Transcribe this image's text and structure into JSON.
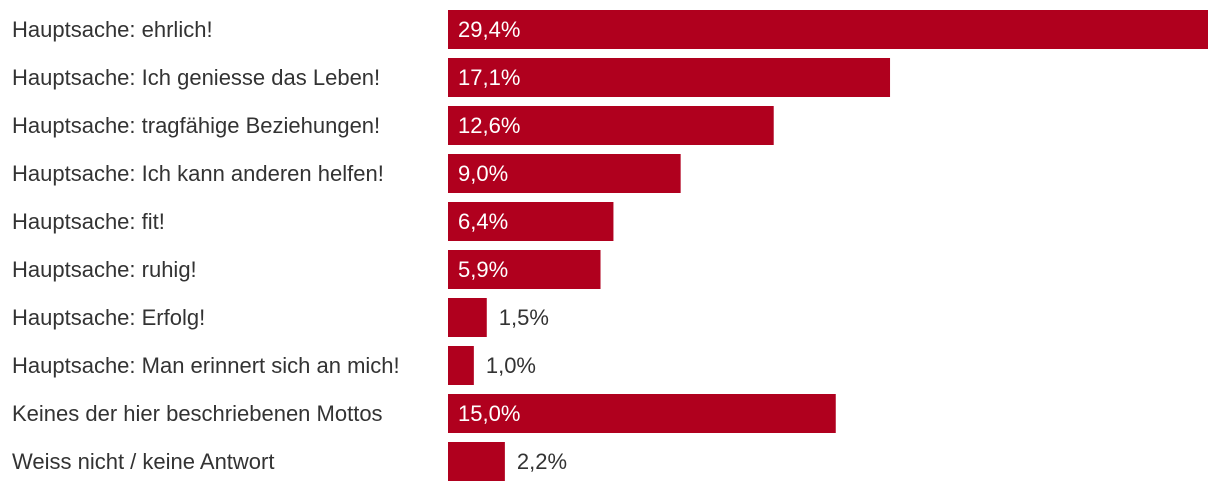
{
  "chart_data": {
    "type": "bar",
    "orientation": "horizontal",
    "categories": [
      "Hauptsache: ehrlich!",
      "Hauptsache: Ich geniesse das Leben!",
      "Hauptsache: tragfähige Beziehungen!",
      "Hauptsache: Ich kann anderen helfen!",
      "Hauptsache: fit!",
      "Hauptsache: ruhig!",
      "Hauptsache: Erfolg!",
      "Hauptsache: Man erinnert sich an mich!",
      "Keines der hier beschriebenen Mottos",
      "Weiss nicht / keine Antwort"
    ],
    "values": [
      29.4,
      17.1,
      12.6,
      9.0,
      6.4,
      5.9,
      1.5,
      1.0,
      15.0,
      2.2
    ],
    "value_labels": [
      "29,4%",
      "17,1%",
      "12,6%",
      "9,0%",
      "6,4%",
      "5,9%",
      "1,5%",
      "1,0%",
      "15,0%",
      "2,2%"
    ],
    "bar_color": "#b0001e",
    "label_color": "#333333",
    "inside_label_color": "#ffffff",
    "xlim": [
      0,
      29.4
    ],
    "grid": false,
    "legend": "none"
  }
}
